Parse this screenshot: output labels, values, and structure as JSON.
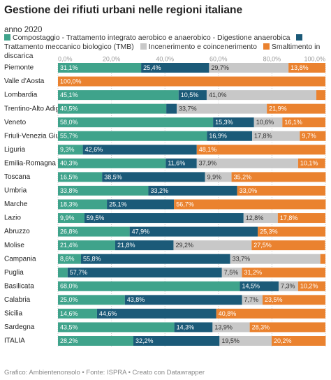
{
  "chart_data": {
    "type": "stacked-bar-horizontal",
    "title": "Gestione dei rifiuti urbani nelle regioni italiane",
    "subtitle": "anno 2020",
    "source": "Grafico: Ambientenonsolo • Fonte: ISPRA • Creato con Datawrapper",
    "categories": [
      "Piemonte",
      "Valle d'Aosta",
      "Lombardia",
      "Trentino-Alto Adige",
      "Veneto",
      "Friuli-Venezia Giulia",
      "Liguria",
      "Emilia-Romagna",
      "Toscana",
      "Umbria",
      "Marche",
      "Lazio",
      "Abruzzo",
      "Molise",
      "Campania",
      "Puglia",
      "Basilicata",
      "Calabria",
      "Sicilia",
      "Sardegna",
      "ITALIA"
    ],
    "xlim": [
      0,
      100
    ],
    "xticks": [
      {
        "value": 0,
        "label": "0,0%"
      },
      {
        "value": 20,
        "label": "20,0%"
      },
      {
        "value": 40,
        "label": "40,0%"
      },
      {
        "value": 60,
        "label": "60,0%"
      },
      {
        "value": 80,
        "label": "80,0%"
      },
      {
        "value": 100,
        "label": "100,0%"
      }
    ],
    "grid": true,
    "series": [
      {
        "name": "Compostaggio - Trattamento integrato aerobico e anaerobico - Digestione anaerobica",
        "color": "#3fa38b",
        "label_color": "#ffffff",
        "values": [
          31.1,
          0,
          45.1,
          40.5,
          58.0,
          55.7,
          9.3,
          40.3,
          16.5,
          33.8,
          18.3,
          9.9,
          26.8,
          21.4,
          8.6,
          3.6,
          68.0,
          25.0,
          14.6,
          43.5,
          28.2
        ],
        "value_labels": [
          "31,1%",
          null,
          "45,1%",
          "40,5%",
          "58,0%",
          "55,7%",
          "9,3%",
          "40,3%",
          "16,5%",
          "33,8%",
          "18,3%",
          "9,9%",
          "26,8%",
          "21,4%",
          "8,6%",
          null,
          "68,0%",
          "25,0%",
          "14,6%",
          "43,5%",
          "28,2%"
        ]
      },
      {
        "name": "Trattamento meccanico biologico (TMB)",
        "color": "#1b5a78",
        "label_color": "#ffffff",
        "values": [
          25.4,
          0,
          10.5,
          3.9,
          15.3,
          16.9,
          42.6,
          11.6,
          38.5,
          33.2,
          25.1,
          59.5,
          47.9,
          21.8,
          55.8,
          57.7,
          14.5,
          43.8,
          44.6,
          14.3,
          32.2
        ],
        "value_labels": [
          "25,4%",
          null,
          "10,5%",
          null,
          "15,3%",
          "16,9%",
          "42,6%",
          "11,6%",
          "38,5%",
          "33,2%",
          "25,1%",
          "59,5%",
          "47,9%",
          "21,8%",
          "55,8%",
          "57,7%",
          "14,5%",
          "43,8%",
          "44,6%",
          "14,3%",
          "32,2%"
        ]
      },
      {
        "name": "Incenerimento e coincenerimento",
        "color": "#c8c8c8",
        "label_color": "#333333",
        "values": [
          29.7,
          0,
          41.0,
          33.7,
          10.6,
          17.8,
          0,
          37.9,
          9.9,
          0,
          0,
          12.8,
          0,
          29.2,
          33.7,
          7.5,
          7.3,
          7.7,
          0,
          13.9,
          19.5
        ],
        "value_labels": [
          "29,7%",
          null,
          "41,0%",
          "33,7%",
          "10,6%",
          "17,8%",
          null,
          "37,9%",
          "9,9%",
          null,
          null,
          "12,8%",
          null,
          "29,2%",
          "33,7%",
          "7,5%",
          "7,3%",
          "7,7%",
          null,
          "13,9%",
          "19,5%"
        ]
      },
      {
        "name": "Smaltimento in discarica",
        "color": "#ea822f",
        "label_color": "#ffffff",
        "values": [
          13.8,
          100.0,
          3.4,
          21.9,
          16.1,
          9.7,
          48.1,
          10.1,
          35.2,
          33.0,
          56.7,
          17.8,
          25.3,
          27.5,
          1.9,
          31.2,
          10.2,
          23.5,
          40.8,
          28.3,
          20.2
        ],
        "value_labels": [
          "13,8%",
          "100,0%",
          null,
          "21,9%",
          "16,1%",
          "9,7%",
          "48,1%",
          "10,1%",
          "35,2%",
          "33,0%",
          "56,7%",
          "17,8%",
          "25,3%",
          "27,5%",
          null,
          "31,2%",
          "10,2%",
          "23,5%",
          "40,8%",
          "28,3%",
          "20,2%"
        ]
      }
    ]
  }
}
